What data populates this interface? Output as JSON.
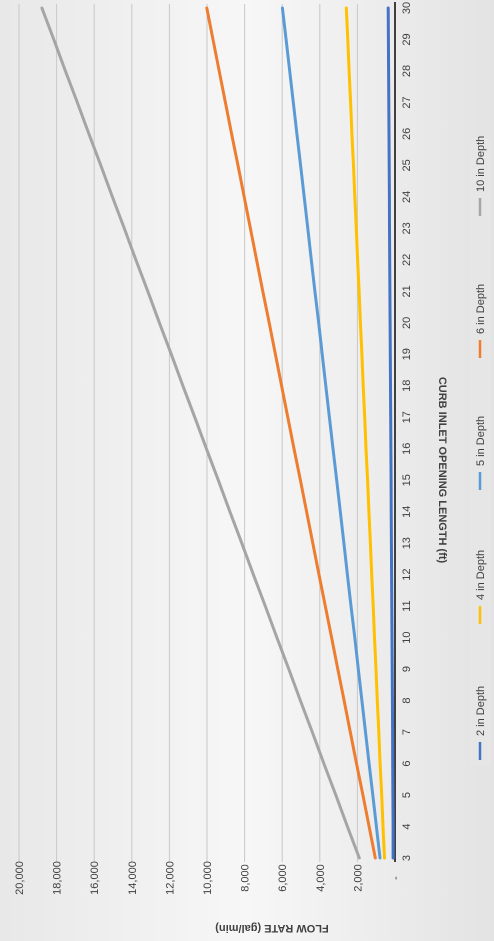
{
  "chart_data": {
    "type": "line",
    "title": "",
    "xlabel": "CURB INLET OPENING LENGTH (ft)",
    "ylabel": "FLOW RATE (gal/min)",
    "x": [
      3,
      4,
      5,
      6,
      7,
      8,
      9,
      10,
      11,
      12,
      13,
      14,
      15,
      16,
      17,
      18,
      19,
      20,
      21,
      22,
      23,
      24,
      25,
      26,
      27,
      28,
      29,
      30
    ],
    "x_tick_labels": [
      "3",
      "4",
      "5",
      "6",
      "7",
      "8",
      "9",
      "10",
      "11",
      "12",
      "13",
      "14",
      "15",
      "16",
      "17",
      "18",
      "19",
      "20",
      "21",
      "22",
      "23",
      "24",
      "25",
      "26",
      "27",
      "28",
      "29",
      "30"
    ],
    "xlim": [
      3,
      30
    ],
    "ylim": [
      0,
      20000
    ],
    "y_ticks": [
      0,
      2000,
      4000,
      6000,
      8000,
      10000,
      12000,
      14000,
      16000,
      18000,
      20000
    ],
    "y_tick_labels": [
      "-",
      "2,000",
      "4,000",
      "6,000",
      "8,000",
      "10,000",
      "12,000",
      "14,000",
      "16,000",
      "18,000",
      "20,000"
    ],
    "grid": true,
    "legend_position": "bottom",
    "series": [
      {
        "name": "2 in Depth",
        "color": "#4472C4",
        "values": [
          100,
          100,
          110,
          120,
          130,
          140,
          150,
          160,
          170,
          180,
          190,
          200,
          210,
          220,
          230,
          240,
          250,
          260,
          270,
          280,
          290,
          300,
          310,
          320,
          330,
          340,
          350,
          360
        ]
      },
      {
        "name": "4 in Depth",
        "color": "#FFC000",
        "values": [
          560,
          640,
          710,
          790,
          860,
          940,
          1010,
          1090,
          1160,
          1240,
          1310,
          1390,
          1460,
          1540,
          1610,
          1690,
          1760,
          1840,
          1910,
          1990,
          2060,
          2140,
          2210,
          2290,
          2360,
          2440,
          2510,
          2590
        ]
      },
      {
        "name": "5 in Depth",
        "color": "#5B9BD5",
        "values": [
          800,
          990,
          1180,
          1380,
          1570,
          1760,
          1950,
          2140,
          2340,
          2530,
          2720,
          2910,
          3100,
          3300,
          3490,
          3680,
          3870,
          4060,
          4260,
          4450,
          4640,
          4830,
          5020,
          5220,
          5410,
          5600,
          5790,
          5990
        ]
      },
      {
        "name": "6 in Depth",
        "color": "#ED7D31",
        "values": [
          1050,
          1380,
          1710,
          2050,
          2380,
          2710,
          3040,
          3370,
          3710,
          4040,
          4370,
          4700,
          5030,
          5370,
          5700,
          6030,
          6360,
          6690,
          7030,
          7360,
          7690,
          8020,
          8350,
          8690,
          9020,
          9350,
          9680,
          10010
        ]
      },
      {
        "name": "10 in Depth",
        "color": "#A5A5A5",
        "values": [
          1900,
          2530,
          3150,
          3780,
          4400,
          5030,
          5650,
          6280,
          6900,
          7530,
          8150,
          8780,
          9400,
          10030,
          10650,
          11280,
          11900,
          12530,
          13150,
          13780,
          14400,
          15030,
          15650,
          16280,
          16900,
          17530,
          18150,
          18780
        ]
      }
    ]
  }
}
